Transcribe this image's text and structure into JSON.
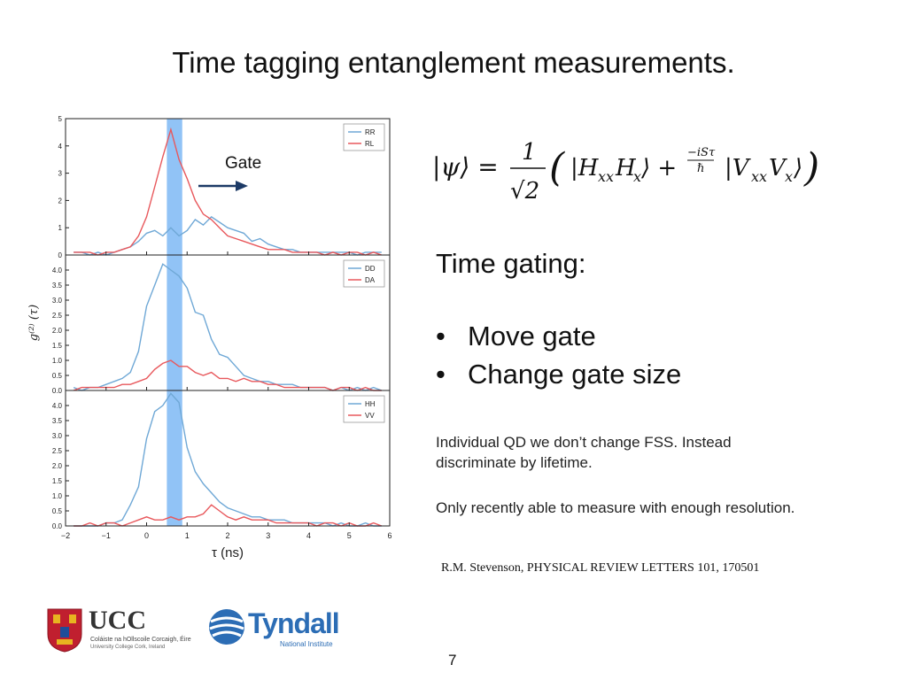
{
  "slide": {
    "title": "Time tagging entanglement measurements.",
    "equation": "|ψ⟩ = 1/√2 (|HxxHx⟩ + e^(−iSτ/ℏ) |VxxVx⟩)",
    "time_gating_heading": "Time gating:",
    "bullets": [
      "Move gate",
      "Change gate size"
    ],
    "note_1": "Individual QD we don’t change FSS. Instead discriminate by lifetime.",
    "note_2": "Only recently able to measure with enough resolution.",
    "reference": "R.M. Stevenson, PHYSICAL REVIEW LETTERS 101, 170501",
    "page_number": "7",
    "logos": {
      "ucc_name": "UCC",
      "ucc_sub1": "Coláiste na hOllscoile Corcaigh, Éire",
      "ucc_sub2": "University College Cork, Ireland",
      "tyndall_name": "Tyndall",
      "tyndall_sub": "National Institute"
    }
  },
  "chart_data": {
    "type": "line",
    "xlabel": "τ (ns)",
    "ylabel": "g⁽²⁾ (τ)",
    "xlim": [
      -2,
      6
    ],
    "x_ticks": [
      "−2",
      "−1",
      "0",
      "1",
      "2",
      "3",
      "4",
      "5",
      "6"
    ],
    "gate": {
      "start": 0.5,
      "end": 0.88,
      "color": "#7eb8f5"
    },
    "gate_label": "Gate",
    "colors": {
      "series_a": "#6fa8d6",
      "series_b": "#e8585c"
    },
    "x": [
      -1.8,
      -1.6,
      -1.4,
      -1.2,
      -1.0,
      -0.8,
      -0.6,
      -0.4,
      -0.2,
      0.0,
      0.2,
      0.4,
      0.6,
      0.8,
      1.0,
      1.2,
      1.4,
      1.6,
      1.8,
      2.0,
      2.2,
      2.4,
      2.6,
      2.8,
      3.0,
      3.2,
      3.4,
      3.6,
      3.8,
      4.0,
      4.2,
      4.4,
      4.6,
      4.8,
      5.0,
      5.2,
      5.4,
      5.6,
      5.8
    ],
    "panels": [
      {
        "ylim": [
          0,
          5
        ],
        "y_ticks": [
          "0",
          "1",
          "2",
          "3",
          "4",
          "5"
        ],
        "series": [
          {
            "name": "RR",
            "values": [
              0.1,
              0.1,
              0.0,
              0.1,
              0.0,
              0.1,
              0.2,
              0.3,
              0.5,
              0.8,
              0.9,
              0.7,
              1.0,
              0.7,
              0.9,
              1.3,
              1.1,
              1.4,
              1.2,
              1.0,
              0.9,
              0.8,
              0.5,
              0.6,
              0.4,
              0.3,
              0.2,
              0.2,
              0.1,
              0.1,
              0.1,
              0.1,
              0.1,
              0.1,
              0.1,
              0.0,
              0.1,
              0.1,
              0.1
            ]
          },
          {
            "name": "RL",
            "values": [
              0.1,
              0.1,
              0.1,
              0.0,
              0.1,
              0.1,
              0.2,
              0.3,
              0.7,
              1.4,
              2.5,
              3.6,
              4.6,
              3.5,
              2.8,
              2.0,
              1.5,
              1.3,
              1.0,
              0.7,
              0.6,
              0.5,
              0.4,
              0.3,
              0.2,
              0.2,
              0.2,
              0.1,
              0.1,
              0.1,
              0.1,
              0.0,
              0.1,
              0.0,
              0.1,
              0.1,
              0.0,
              0.1,
              0.0
            ]
          }
        ]
      },
      {
        "ylim": [
          0,
          4.5
        ],
        "y_ticks": [
          "0.0",
          "0.5",
          "1.0",
          "1.5",
          "2.0",
          "2.5",
          "3.0",
          "3.5",
          "4.0"
        ],
        "series": [
          {
            "name": "DD",
            "values": [
              0.1,
              0.0,
              0.1,
              0.1,
              0.2,
              0.3,
              0.4,
              0.6,
              1.3,
              2.8,
              3.5,
              4.2,
              4.0,
              3.8,
              3.4,
              2.6,
              2.5,
              1.7,
              1.2,
              1.1,
              0.8,
              0.5,
              0.4,
              0.3,
              0.3,
              0.2,
              0.2,
              0.2,
              0.1,
              0.1,
              0.1,
              0.1,
              0.0,
              0.1,
              0.0,
              0.1,
              0.0,
              0.1,
              0.0
            ]
          },
          {
            "name": "DA",
            "values": [
              0.0,
              0.1,
              0.1,
              0.1,
              0.1,
              0.1,
              0.2,
              0.2,
              0.3,
              0.4,
              0.7,
              0.9,
              1.0,
              0.8,
              0.8,
              0.6,
              0.5,
              0.6,
              0.4,
              0.4,
              0.3,
              0.4,
              0.3,
              0.3,
              0.2,
              0.2,
              0.1,
              0.1,
              0.1,
              0.1,
              0.1,
              0.1,
              0.0,
              0.1,
              0.1,
              0.0,
              0.1,
              0.0,
              0.0
            ]
          }
        ]
      },
      {
        "ylim": [
          0,
          4.5
        ],
        "y_ticks": [
          "0.0",
          "0.5",
          "1.0",
          "1.5",
          "2.0",
          "2.5",
          "3.0",
          "3.5",
          "4.0"
        ],
        "series": [
          {
            "name": "HH",
            "values": [
              0.0,
              0.0,
              0.0,
              0.0,
              0.1,
              0.1,
              0.2,
              0.7,
              1.3,
              2.9,
              3.8,
              4.0,
              4.4,
              4.1,
              2.6,
              1.8,
              1.4,
              1.1,
              0.8,
              0.6,
              0.5,
              0.4,
              0.3,
              0.3,
              0.2,
              0.2,
              0.2,
              0.1,
              0.1,
              0.1,
              0.1,
              0.1,
              0.0,
              0.1,
              0.0,
              0.0,
              0.1,
              0.0,
              0.0
            ]
          },
          {
            "name": "VV",
            "values": [
              0.0,
              0.0,
              0.1,
              0.0,
              0.1,
              0.1,
              0.0,
              0.1,
              0.2,
              0.3,
              0.2,
              0.2,
              0.3,
              0.2,
              0.3,
              0.3,
              0.4,
              0.7,
              0.5,
              0.3,
              0.2,
              0.3,
              0.2,
              0.2,
              0.2,
              0.1,
              0.1,
              0.1,
              0.1,
              0.1,
              0.0,
              0.1,
              0.1,
              0.0,
              0.1,
              0.0,
              0.0,
              0.1,
              0.0
            ]
          }
        ]
      }
    ]
  }
}
